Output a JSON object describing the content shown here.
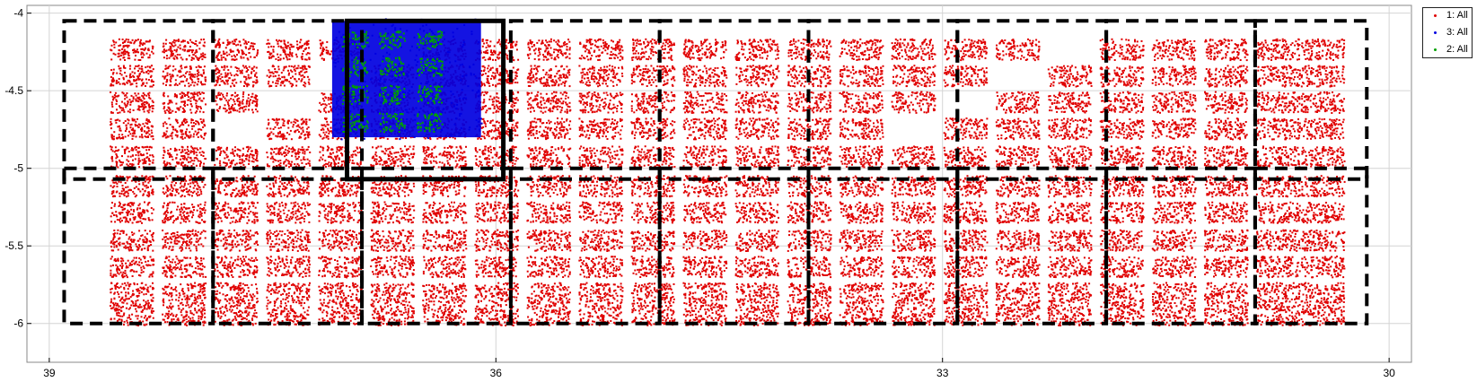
{
  "chart_data": {
    "type": "scatter",
    "title": "",
    "xlabel": "",
    "ylabel": "",
    "x_reversed": true,
    "xlim": [
      39.15,
      29.85
    ],
    "ylim": [
      -6.25,
      -3.95
    ],
    "xticks": [
      39,
      36,
      33,
      30
    ],
    "yticks": [
      -4,
      -4.5,
      -5,
      -5.5,
      -6
    ],
    "grid": true,
    "legend_position": "top-right-outside",
    "series": [
      {
        "name": "1: All",
        "color": "#e00000",
        "region": {
          "x": [
            30.3,
            38.7
          ],
          "y": [
            -5.97,
            -4.13
          ]
        },
        "tile_rows_y": [
          -4.23,
          -4.4,
          -4.57,
          -4.74,
          -4.92,
          -5.11,
          -5.28,
          -5.46,
          -5.63,
          -5.8,
          -5.94
        ],
        "tile_cols_x": [
          38.45,
          38.1,
          37.75,
          37.4,
          37.05,
          36.7,
          36.35,
          36.0,
          35.65,
          35.3,
          34.95,
          34.6,
          34.25,
          33.9,
          33.55,
          33.2,
          32.85,
          32.5,
          32.15,
          31.8,
          31.45,
          31.1,
          30.75,
          30.45
        ]
      },
      {
        "name": "3: All",
        "color": "#0000e0",
        "region": {
          "x": [
            36.1,
            37.1
          ],
          "y": [
            -4.8,
            -4.05
          ]
        }
      },
      {
        "name": "2: All",
        "color": "#00a000",
        "tiles": [
          [
            36.95,
            -4.17
          ],
          [
            36.7,
            -4.17
          ],
          [
            36.45,
            -4.17
          ],
          [
            36.95,
            -4.34
          ],
          [
            36.7,
            -4.34
          ],
          [
            36.45,
            -4.34
          ],
          [
            36.95,
            -4.52
          ],
          [
            36.7,
            -4.52
          ],
          [
            36.45,
            -4.52
          ],
          [
            36.95,
            -4.7
          ],
          [
            36.7,
            -4.7
          ],
          [
            36.45,
            -4.7
          ]
        ]
      }
    ],
    "dashed_rectangles": [
      {
        "x": [
          38.9,
          37.9
        ],
        "y": [
          -6.0,
          -5.0
        ]
      },
      {
        "x": [
          37.9,
          36.9
        ],
        "y": [
          -6.0,
          -5.0
        ]
      },
      {
        "x": [
          36.9,
          35.9
        ],
        "y": [
          -6.0,
          -5.0
        ]
      },
      {
        "x": [
          35.9,
          34.9
        ],
        "y": [
          -6.0,
          -5.0
        ]
      },
      {
        "x": [
          34.9,
          33.9
        ],
        "y": [
          -6.0,
          -5.0
        ]
      },
      {
        "x": [
          33.9,
          32.9
        ],
        "y": [
          -6.0,
          -5.0
        ]
      },
      {
        "x": [
          32.9,
          31.9
        ],
        "y": [
          -6.0,
          -5.0
        ]
      },
      {
        "x": [
          31.9,
          30.9
        ],
        "y": [
          -6.0,
          -5.0
        ]
      },
      {
        "x": [
          30.9,
          30.15
        ],
        "y": [
          -6.0,
          -5.0
        ]
      },
      {
        "x": [
          38.9,
          37.9
        ],
        "y": [
          -5.07,
          -4.05
        ]
      },
      {
        "x": [
          35.9,
          34.9
        ],
        "y": [
          -5.07,
          -4.05
        ]
      },
      {
        "x": [
          34.9,
          33.9
        ],
        "y": [
          -5.07,
          -4.05
        ]
      },
      {
        "x": [
          33.9,
          32.9
        ],
        "y": [
          -5.07,
          -4.05
        ]
      },
      {
        "x": [
          32.9,
          31.9
        ],
        "y": [
          -5.07,
          -4.05
        ]
      },
      {
        "x": [
          31.9,
          30.9
        ],
        "y": [
          -5.07,
          -4.05
        ]
      },
      {
        "x": [
          30.9,
          30.15
        ],
        "y": [
          -5.07,
          -4.05
        ]
      },
      {
        "x": [
          37.9,
          36.9
        ],
        "y": [
          -5.07,
          -4.05
        ]
      }
    ],
    "solid_rectangle": {
      "x": [
        37.0,
        35.95
      ],
      "y": [
        -5.07,
        -4.05
      ]
    }
  },
  "legend": {
    "items": [
      {
        "label": "1: All",
        "color": "#e00000"
      },
      {
        "label": "3: All",
        "color": "#0000e0"
      },
      {
        "label": "2: All",
        "color": "#00a000"
      }
    ]
  }
}
